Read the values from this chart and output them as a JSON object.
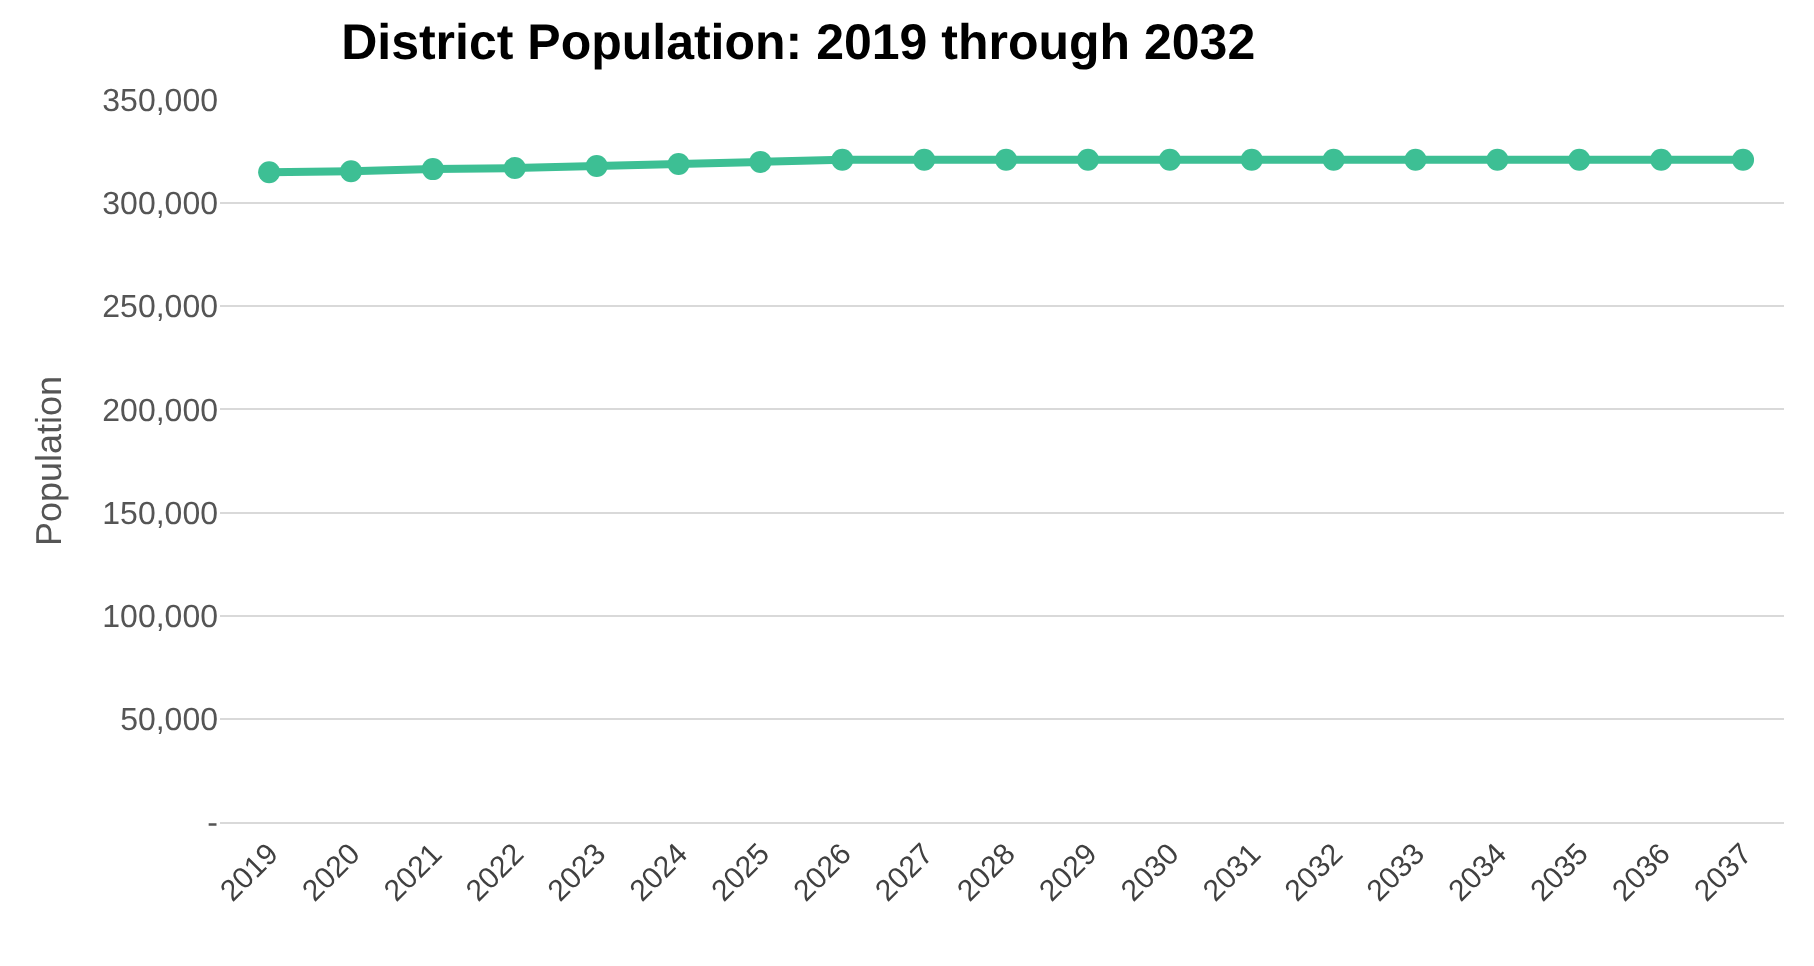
{
  "chart_data": {
    "type": "line",
    "title": "District Population: 2019 through 2032",
    "ylabel": "Population",
    "categories": [
      "2019",
      "2020",
      "2021",
      "2022",
      "2023",
      "2024",
      "2025",
      "2026",
      "2027",
      "2028",
      "2029",
      "2030",
      "2031",
      "2032",
      "2033",
      "2034",
      "2035",
      "2036",
      "2037"
    ],
    "series": [
      {
        "color": "#3dbf94",
        "values": [
          315000,
          315500,
          316500,
          317000,
          318000,
          319000,
          320000,
          321000,
          321000,
          321000,
          321000,
          321000,
          321000,
          321000,
          321000,
          321000,
          321000,
          321000,
          321000
        ]
      }
    ],
    "ylim": [
      0,
      350000
    ],
    "yticks": [
      {
        "value": 0,
        "label": "-"
      },
      {
        "value": 50000,
        "label": "50,000"
      },
      {
        "value": 100000,
        "label": "100,000"
      },
      {
        "value": 150000,
        "label": "150,000"
      },
      {
        "value": 200000,
        "label": "200,000"
      },
      {
        "value": 250000,
        "label": "250,000"
      },
      {
        "value": 300000,
        "label": "300,000"
      },
      {
        "value": 350000,
        "label": "350,000"
      }
    ],
    "grid": "y",
    "marker": "circle",
    "line_style": "solid"
  }
}
